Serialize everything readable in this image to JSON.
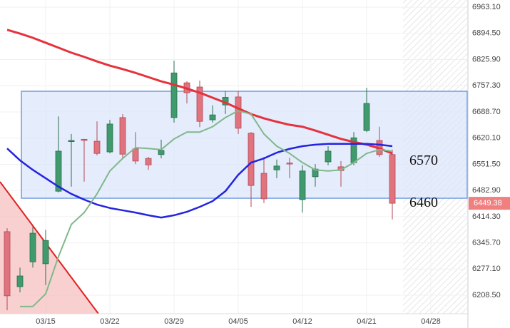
{
  "chart_data": {
    "type": "candlestick",
    "categories": [
      null,
      null,
      null,
      "03/15",
      null,
      null,
      null,
      null,
      "03/22",
      null,
      null,
      null,
      null,
      "03/29",
      null,
      null,
      null,
      null,
      "04/05",
      null,
      null,
      null,
      null,
      "04/12",
      null,
      null,
      null,
      null,
      "04/21",
      null,
      null,
      null,
      null,
      "04/28"
    ],
    "open": [
      6375,
      6231,
      6296,
      6291,
      6481,
      6611,
      6617,
      6612,
      6584,
      6674,
      6592,
      6567,
      6577,
      6674,
      6765,
      6754,
      6668,
      6707,
      6728,
      6633,
      6528,
      6537,
      6555,
      6459,
      6519,
      6558,
      6545,
      6556,
      6640,
      6614,
      6577,
      null,
      null,
      null
    ],
    "high": [
      6384,
      6281,
      6388,
      6380,
      6677,
      6631,
      6618,
      6664,
      6668,
      6683,
      6636,
      6571,
      6616,
      6823,
      6769,
      6771,
      6706,
      6743,
      6743,
      6636,
      6571,
      6564,
      6569,
      6549,
      6552,
      6599,
      6560,
      6636,
      6752,
      6650,
      6590,
      null,
      null,
      null
    ],
    "low": [
      6169,
      6216,
      6281,
      6235,
      6478,
      6493,
      6506,
      6575,
      6580,
      6567,
      6552,
      6537,
      6567,
      6661,
      6711,
      6649,
      6661,
      6683,
      6631,
      6440,
      6450,
      6515,
      6515,
      6425,
      6493,
      6549,
      6493,
      6549,
      6636,
      6571,
      6407,
      null,
      null,
      null
    ],
    "close": [
      6207,
      6259,
      6371,
      6352,
      6586,
      6614,
      6615,
      6580,
      6657,
      6578,
      6560,
      6550,
      6588,
      6791,
      6739,
      6664,
      6681,
      6727,
      6646,
      6496,
      6461,
      6547,
      6553,
      6534,
      6539,
      6586,
      6535,
      6621,
      6711,
      6577,
      6449.38,
      null,
      null,
      null
    ],
    "up_color": "#3f9a6c",
    "down_color": "#e0737d",
    "series": [
      {
        "color": "#e5323c",
        "values": [
          6904,
          6894,
          6883,
          6870,
          6857,
          6844,
          6833,
          6821,
          6810,
          6801,
          6791,
          6780,
          6769,
          6760,
          6750,
          6739,
          6726,
          6713,
          6698,
          6683,
          6672,
          6663,
          6655,
          6650,
          6640,
          6629,
          6618,
          6610,
          6603,
          6593,
          6580,
          null,
          null,
          null
        ]
      },
      {
        "color": "#2424e0",
        "values": [
          6593,
          6562,
          6537,
          6515,
          6493,
          6474,
          6459,
          6446,
          6437,
          6431,
          6425,
          6418,
          6412,
          6418,
          6427,
          6440,
          6455,
          6481,
          6524,
          6556,
          6567,
          6582,
          6592,
          6599,
          6603,
          6605,
          6605,
          6605,
          6605,
          6603,
          6599,
          null,
          null,
          null
        ]
      },
      {
        "color": "#7fb88a",
        "values": [
          null,
          6179,
          6179,
          6212,
          6310,
          6394,
          6425,
          6474,
          6534,
          6567,
          6595,
          6593,
          6590,
          6618,
          6636,
          6636,
          6650,
          6674,
          6692,
          6683,
          6631,
          6599,
          6580,
          6556,
          6537,
          6534,
          6537,
          6556,
          6580,
          6590,
          6586,
          null,
          null,
          null
        ]
      }
    ],
    "ylim": [
      6160,
      6982
    ],
    "yticks": [
      {
        "value": 6963.1,
        "label": "6963.10"
      },
      {
        "value": 6894.5,
        "label": "6894.50"
      },
      {
        "value": 6825.9,
        "label": "6825.90"
      },
      {
        "value": 6757.3,
        "label": "6757.30"
      },
      {
        "value": 6688.7,
        "label": "6688.70"
      },
      {
        "value": 6620.1,
        "label": "6620.10"
      },
      {
        "value": 6551.5,
        "label": "6551.50"
      },
      {
        "value": 6482.9,
        "label": "6482.90"
      },
      {
        "value": 6414.3,
        "label": "6414.30"
      },
      {
        "value": 6345.7,
        "label": "6345.70"
      },
      {
        "value": 6277.1,
        "label": "6277.10"
      },
      {
        "value": 6208.5,
        "label": "6208.50"
      }
    ],
    "levels": [
      6570,
      6460
    ],
    "last_price": 6449.38,
    "grid": true
  }
}
